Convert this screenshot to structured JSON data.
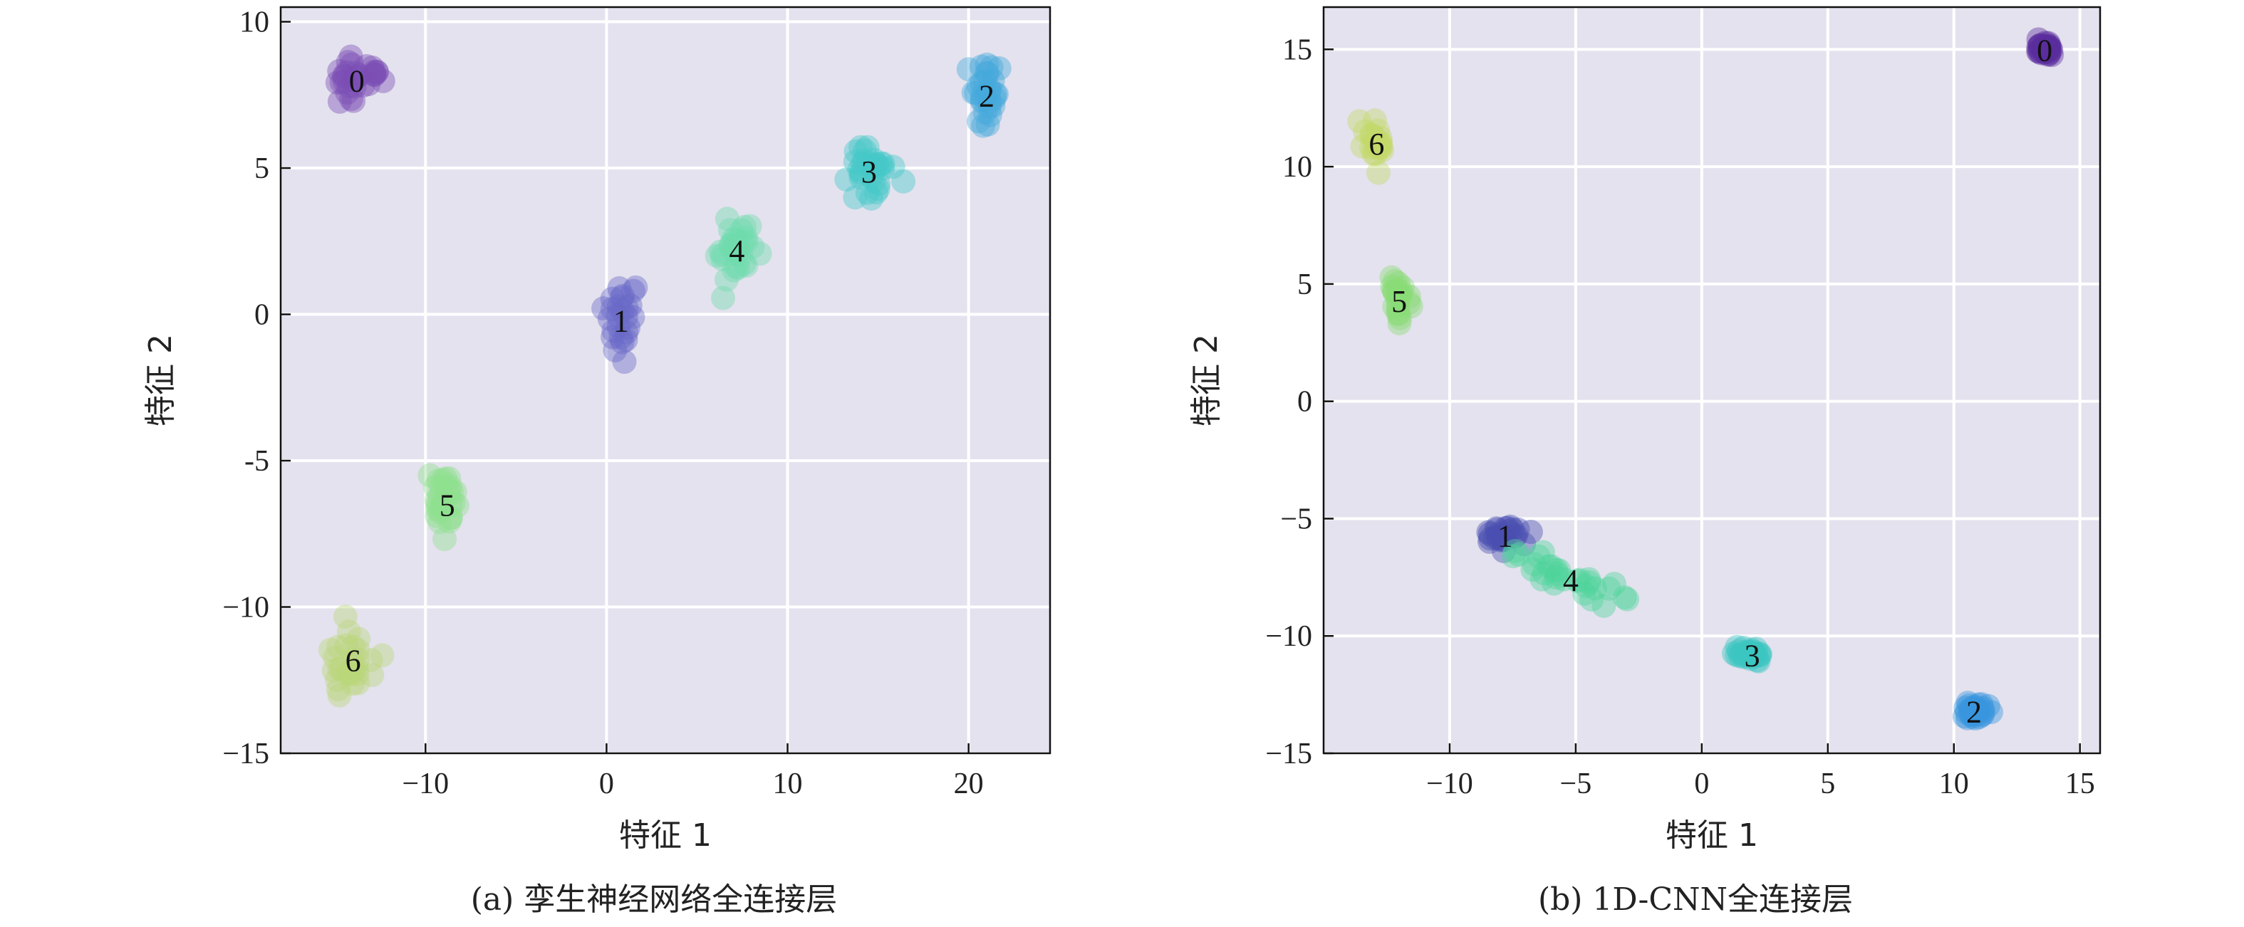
{
  "chart_data": [
    {
      "type": "scatter",
      "caption": "(a) 孪生神经网络全连接层",
      "xlabel": "特征 1",
      "ylabel": "特征 2",
      "xlim": [
        -18,
        24.5
      ],
      "ylim": [
        -15,
        10.5
      ],
      "xticks": [
        -10,
        0,
        10,
        20
      ],
      "yticks": [
        -15,
        -10,
        -5,
        0,
        5,
        10
      ],
      "xtick_labels": [
        "−10",
        "0",
        "10",
        "20"
      ],
      "ytick_labels": [
        "−15",
        "−10",
        "-5",
        "0",
        "5",
        "10"
      ],
      "grid": true,
      "series": [
        {
          "label": "0",
          "color": "#7b4fb5",
          "center": [
            -13.8,
            8.0
          ],
          "spread": [
            1.2,
            0.8
          ],
          "count": 32
        },
        {
          "label": "1",
          "color": "#6a6ac8",
          "center": [
            0.8,
            -0.2
          ],
          "spread": [
            0.8,
            1.3
          ],
          "count": 26
        },
        {
          "label": "2",
          "color": "#45a9db",
          "center": [
            21.0,
            7.5
          ],
          "spread": [
            1.0,
            1.1
          ],
          "count": 30
        },
        {
          "label": "3",
          "color": "#44c8c8",
          "center": [
            14.5,
            4.9
          ],
          "spread": [
            1.2,
            0.9
          ],
          "count": 30
        },
        {
          "label": "4",
          "color": "#6fdcae",
          "center": [
            7.2,
            2.2
          ],
          "spread": [
            1.1,
            1.2
          ],
          "count": 34
        },
        {
          "label": "5",
          "color": "#8fe08f",
          "center": [
            -8.8,
            -6.5
          ],
          "spread": [
            0.7,
            1.2
          ],
          "count": 30
        },
        {
          "label": "6",
          "color": "#b9d77a",
          "center": [
            -14.0,
            -11.8
          ],
          "spread": [
            1.3,
            1.0
          ],
          "count": 28
        }
      ]
    },
    {
      "type": "scatter",
      "caption": "(b) 1D-CNN全连接层",
      "xlabel": "特征 1",
      "ylabel": "特征 2",
      "xlim": [
        -15,
        15.8
      ],
      "ylim": [
        -15,
        16.8
      ],
      "xticks": [
        -10,
        -5,
        0,
        5,
        10,
        15
      ],
      "yticks": [
        -15,
        -10,
        -5,
        0,
        5,
        10,
        15
      ],
      "xtick_labels": [
        "−10",
        "−5",
        "0",
        "5",
        "10",
        "15"
      ],
      "ytick_labels": [
        "−15",
        "−10",
        "−5",
        "0",
        "5",
        "10",
        "15"
      ],
      "grid": true,
      "series": [
        {
          "label": "0",
          "color": "#5a2e9e",
          "center": [
            13.6,
            15.0
          ],
          "spread": [
            0.35,
            0.3
          ],
          "count": 30
        },
        {
          "label": "1",
          "color": "#4b4fb0",
          "center": [
            -7.8,
            -5.7
          ],
          "spread": [
            0.9,
            0.4
          ],
          "count": 24
        },
        {
          "label": "2",
          "color": "#3a97dd",
          "center": [
            10.8,
            -13.2
          ],
          "spread": [
            0.5,
            0.3
          ],
          "count": 30
        },
        {
          "label": "3",
          "color": "#3cc6c0",
          "center": [
            2.0,
            -10.8
          ],
          "spread": [
            0.6,
            0.25
          ],
          "count": 26
        },
        {
          "label": "4",
          "color": "#4fd39a",
          "center": [
            -5.2,
            -7.6
          ],
          "spread": [
            2.3,
            0.8
          ],
          "count": 30,
          "trend": -0.42
        },
        {
          "label": "5",
          "color": "#8bdc78",
          "center": [
            -12.0,
            4.3
          ],
          "spread": [
            0.4,
            1.0
          ],
          "count": 24
        },
        {
          "label": "6",
          "color": "#c4d86a",
          "center": [
            -12.9,
            11.0
          ],
          "spread": [
            0.4,
            0.8
          ],
          "count": 22
        }
      ]
    }
  ]
}
